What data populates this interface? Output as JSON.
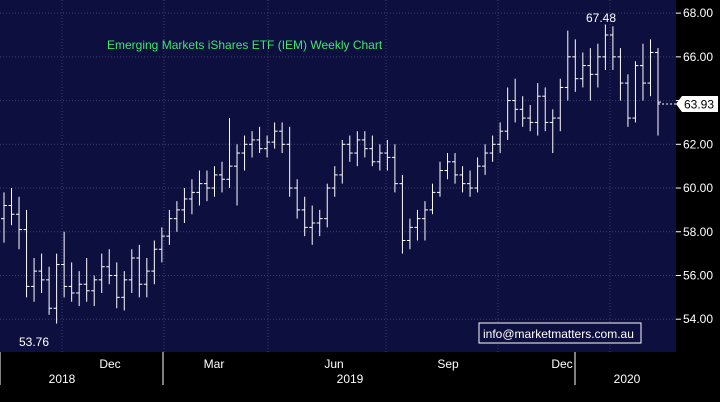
{
  "chart_data": {
    "type": "ohlc",
    "title": "Emerging Markets iShares ETF (IEM) Weekly Chart",
    "ylim": [
      52.5,
      68.6
    ],
    "yticks": [
      "54.00",
      "56.00",
      "58.00",
      "60.00",
      "62.00",
      "64.00",
      "66.00",
      "68.00"
    ],
    "month_labels": [
      "Dec",
      "Mar",
      "Jun",
      "Sep",
      "Dec"
    ],
    "year_labels": [
      "2018",
      "2019",
      "2020"
    ],
    "last_price": "63.93",
    "high_label": "67.48",
    "low_label": "53.76",
    "watermark": "info@marketmatters.com.au",
    "bars": [
      [
        58.6,
        59.8,
        57.5,
        59.2
      ],
      [
        59.2,
        60.0,
        58.3,
        58.8
      ],
      [
        58.8,
        59.6,
        57.2,
        58.1
      ],
      [
        58.1,
        59.0,
        55.0,
        55.5
      ],
      [
        55.5,
        56.8,
        54.8,
        56.2
      ],
      [
        56.2,
        57.0,
        55.2,
        55.8
      ],
      [
        55.8,
        56.4,
        54.2,
        54.5
      ],
      [
        54.5,
        57.0,
        53.8,
        56.5
      ],
      [
        56.5,
        58.0,
        55.0,
        55.5
      ],
      [
        55.5,
        56.6,
        54.8,
        55.2
      ],
      [
        55.2,
        56.2,
        54.6,
        55.6
      ],
      [
        55.6,
        56.8,
        54.8,
        55.3
      ],
      [
        55.3,
        56.0,
        54.6,
        55.8
      ],
      [
        55.8,
        57.0,
        55.2,
        56.4
      ],
      [
        56.4,
        57.2,
        55.6,
        56.0
      ],
      [
        56.0,
        56.6,
        54.5,
        55.0
      ],
      [
        55.0,
        56.2,
        54.4,
        55.8
      ],
      [
        55.8,
        57.2,
        55.2,
        56.8
      ],
      [
        56.8,
        57.4,
        55.0,
        55.6
      ],
      [
        55.6,
        56.8,
        55.0,
        56.2
      ],
      [
        56.2,
        57.6,
        55.6,
        57.2
      ],
      [
        57.2,
        58.2,
        56.6,
        57.8
      ],
      [
        57.8,
        59.0,
        57.4,
        58.6
      ],
      [
        58.6,
        59.4,
        58.0,
        59.0
      ],
      [
        59.0,
        60.0,
        58.4,
        59.5
      ],
      [
        59.5,
        60.4,
        58.8,
        59.8
      ],
      [
        59.8,
        60.8,
        59.2,
        60.2
      ],
      [
        60.2,
        60.8,
        59.4,
        60.0
      ],
      [
        60.0,
        61.0,
        59.6,
        60.6
      ],
      [
        60.6,
        61.2,
        59.8,
        60.4
      ],
      [
        60.4,
        63.2,
        60.0,
        61.0
      ],
      [
        61.0,
        62.0,
        59.2,
        61.6
      ],
      [
        61.6,
        62.4,
        60.8,
        62.0
      ],
      [
        62.0,
        62.6,
        61.4,
        62.2
      ],
      [
        62.2,
        62.8,
        61.6,
        61.8
      ],
      [
        61.8,
        62.4,
        61.4,
        62.1
      ],
      [
        62.1,
        63.0,
        61.8,
        62.6
      ],
      [
        62.6,
        63.0,
        61.6,
        62.0
      ],
      [
        62.0,
        62.8,
        59.6,
        60.0
      ],
      [
        60.0,
        60.4,
        58.6,
        59.0
      ],
      [
        59.0,
        59.6,
        57.8,
        58.2
      ],
      [
        58.2,
        59.2,
        57.4,
        58.4
      ],
      [
        58.4,
        59.0,
        57.8,
        58.6
      ],
      [
        58.6,
        60.2,
        58.2,
        60.0
      ],
      [
        60.0,
        61.0,
        59.6,
        60.6
      ],
      [
        60.6,
        62.2,
        60.2,
        62.0
      ],
      [
        62.0,
        62.4,
        61.2,
        61.6
      ],
      [
        61.6,
        62.6,
        61.0,
        62.2
      ],
      [
        62.2,
        62.6,
        61.4,
        61.8
      ],
      [
        61.8,
        62.4,
        61.0,
        61.2
      ],
      [
        61.2,
        62.0,
        60.8,
        61.6
      ],
      [
        61.6,
        62.2,
        60.8,
        61.4
      ],
      [
        61.4,
        62.0,
        59.8,
        60.2
      ],
      [
        60.2,
        60.6,
        57.0,
        57.6
      ],
      [
        57.6,
        58.6,
        57.2,
        58.2
      ],
      [
        58.2,
        59.0,
        57.6,
        58.6
      ],
      [
        58.6,
        59.4,
        57.6,
        59.0
      ],
      [
        59.0,
        60.2,
        58.8,
        59.8
      ],
      [
        59.8,
        61.2,
        59.6,
        60.8
      ],
      [
        60.8,
        61.6,
        60.4,
        61.2
      ],
      [
        61.2,
        61.6,
        60.2,
        60.6
      ],
      [
        60.6,
        61.0,
        59.8,
        60.2
      ],
      [
        60.2,
        60.8,
        59.6,
        60.0
      ],
      [
        60.0,
        61.4,
        59.8,
        61.0
      ],
      [
        61.0,
        62.0,
        60.6,
        61.6
      ],
      [
        61.6,
        62.4,
        61.2,
        62.0
      ],
      [
        62.0,
        63.0,
        61.6,
        62.6
      ],
      [
        62.6,
        64.6,
        62.2,
        64.0
      ],
      [
        64.0,
        65.0,
        63.0,
        63.6
      ],
      [
        63.6,
        64.2,
        62.8,
        63.2
      ],
      [
        63.2,
        63.8,
        62.6,
        63.0
      ],
      [
        63.0,
        64.8,
        62.4,
        64.2
      ],
      [
        64.2,
        64.6,
        62.6,
        63.0
      ],
      [
        63.0,
        63.6,
        61.6,
        63.2
      ],
      [
        63.2,
        65.0,
        62.6,
        64.6
      ],
      [
        64.6,
        67.2,
        64.0,
        66.0
      ],
      [
        66.0,
        66.8,
        64.4,
        65.0
      ],
      [
        65.0,
        66.2,
        64.6,
        65.6
      ],
      [
        65.6,
        66.4,
        64.0,
        65.2
      ],
      [
        65.2,
        66.6,
        64.6,
        66.0
      ],
      [
        66.0,
        67.48,
        65.4,
        67.0
      ],
      [
        67.0,
        67.4,
        65.4,
        66.0
      ],
      [
        66.0,
        66.4,
        64.0,
        64.8
      ],
      [
        64.8,
        65.2,
        62.8,
        63.2
      ],
      [
        63.2,
        65.8,
        63.0,
        65.6
      ],
      [
        65.6,
        66.6,
        64.0,
        64.8
      ],
      [
        64.8,
        66.8,
        64.2,
        66.2
      ],
      [
        66.2,
        66.4,
        62.4,
        63.93
      ]
    ]
  }
}
